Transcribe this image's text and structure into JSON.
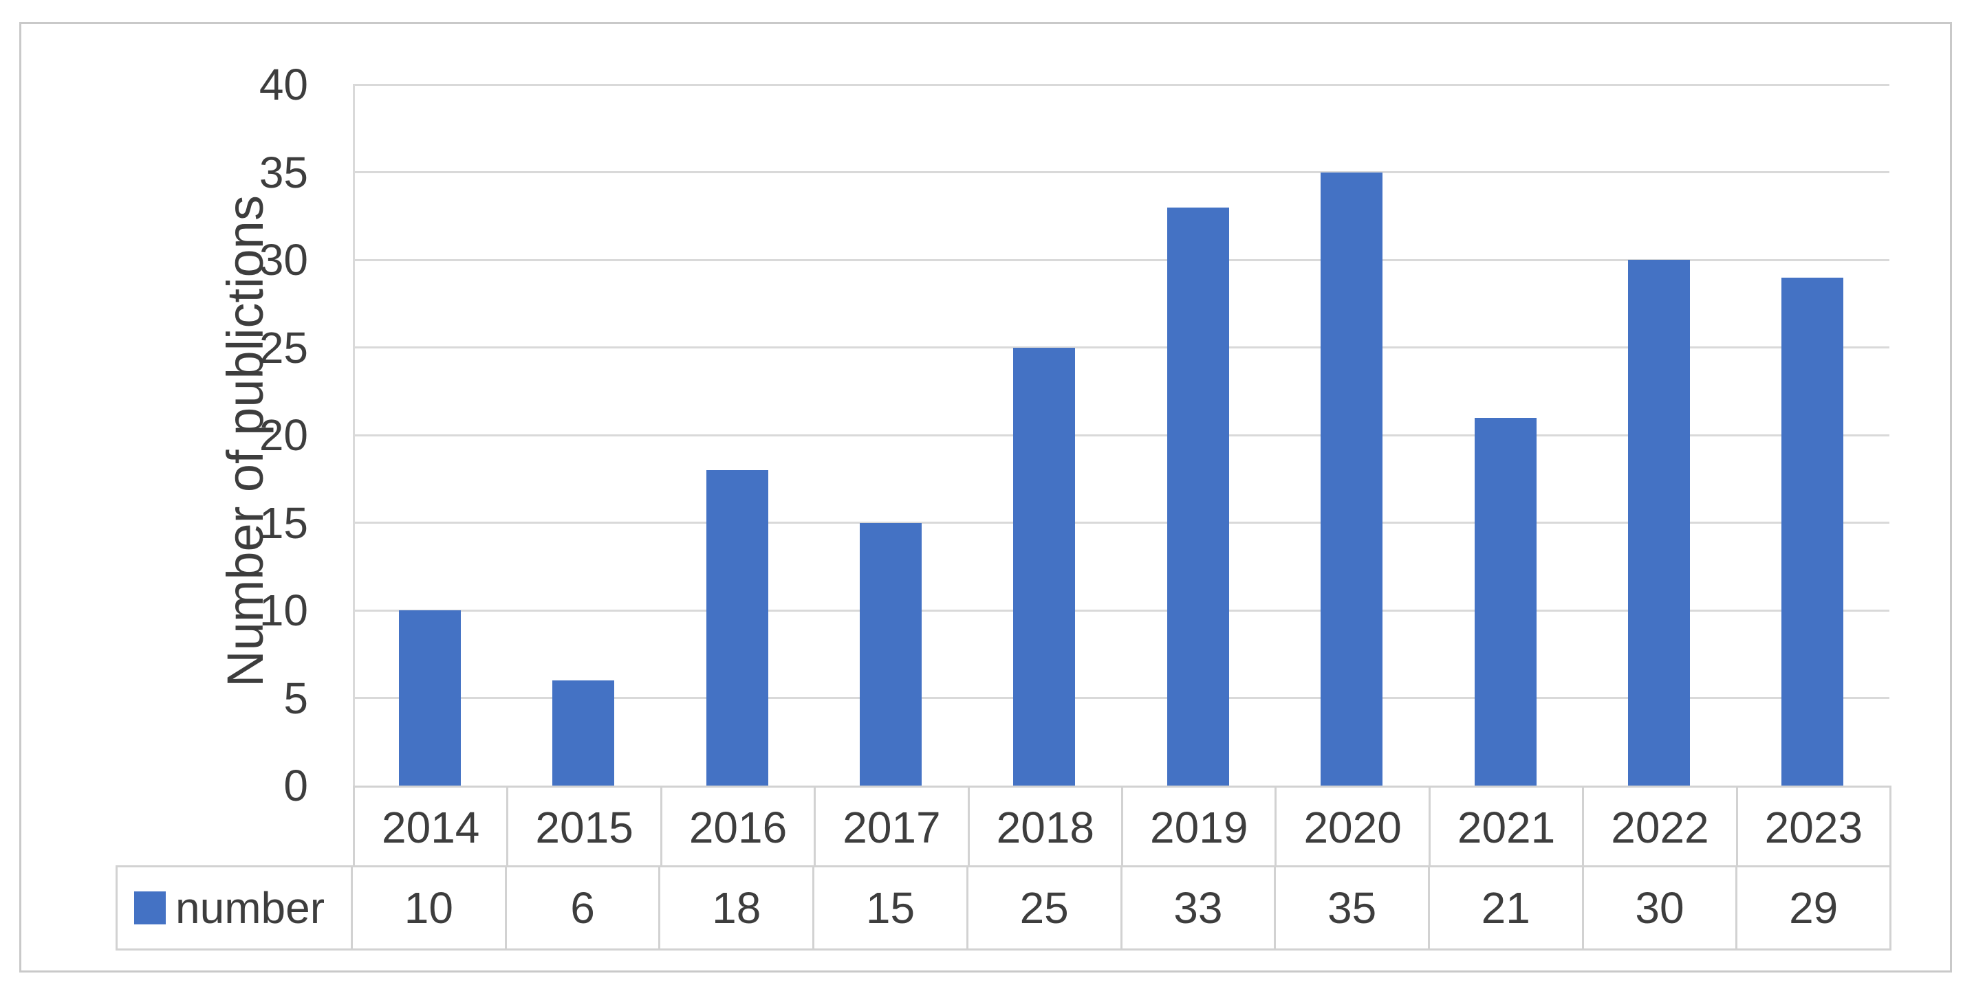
{
  "figure": {
    "background_color": "#ffffff",
    "frame_border_color": "#c9c9c9"
  },
  "chart_data": {
    "type": "bar",
    "title": "",
    "xlabel": "",
    "ylabel": "Number of publictions",
    "categories": [
      "2014",
      "2015",
      "2016",
      "2017",
      "2018",
      "2019",
      "2020",
      "2021",
      "2022",
      "2023"
    ],
    "series": [
      {
        "name": "number",
        "values": [
          10,
          6,
          18,
          15,
          25,
          33,
          35,
          21,
          30,
          29
        ]
      }
    ],
    "ylim": [
      0,
      40
    ],
    "ytick_step": 5,
    "yticks": [
      0,
      5,
      10,
      15,
      20,
      25,
      30,
      35,
      40
    ],
    "grid": "horizontal-only",
    "legend_position": "data-table-left",
    "data_table_shown": true,
    "bar_color": "#4472c4",
    "gridline_color": "#d9d9d9",
    "table_border_color": "#d2d2d2",
    "text_color": "#3d3d3d"
  }
}
